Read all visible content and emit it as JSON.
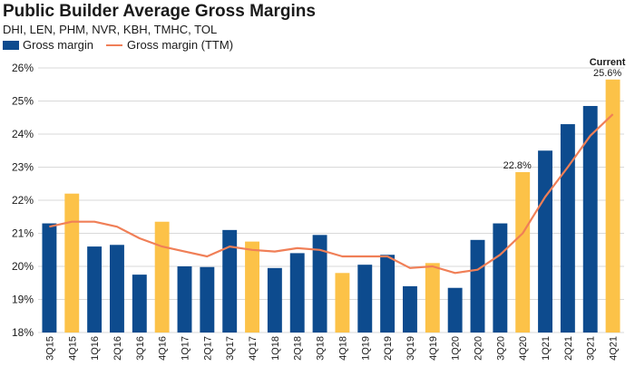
{
  "chart_data": {
    "type": "bar",
    "title": "Public Builder Average Gross Margins",
    "subtitle": "DHI, LEN, PHM, NVR, KBH, TMHC, TOL",
    "categories": [
      "3Q15",
      "4Q15",
      "1Q16",
      "2Q16",
      "3Q16",
      "4Q16",
      "1Q17",
      "2Q17",
      "3Q17",
      "4Q17",
      "1Q18",
      "2Q18",
      "3Q18",
      "4Q18",
      "1Q19",
      "2Q19",
      "3Q19",
      "4Q19",
      "1Q20",
      "2Q20",
      "3Q20",
      "4Q20",
      "1Q21",
      "2Q21",
      "3Q21",
      "4Q21"
    ],
    "series": [
      {
        "name": "Gross margin",
        "kind": "bar",
        "values": [
          21.3,
          22.2,
          20.6,
          20.65,
          19.75,
          21.35,
          20.0,
          19.98,
          21.1,
          20.75,
          19.95,
          20.4,
          20.95,
          19.8,
          20.05,
          20.35,
          19.4,
          20.1,
          19.35,
          20.8,
          21.3,
          22.85,
          23.5,
          24.3,
          24.85,
          25.65
        ]
      },
      {
        "name": "Gross margin (TTM)",
        "kind": "line",
        "values": [
          21.2,
          21.35,
          21.35,
          21.2,
          20.85,
          20.6,
          20.45,
          20.3,
          20.6,
          20.5,
          20.45,
          20.55,
          20.5,
          20.3,
          20.3,
          20.3,
          19.95,
          20.0,
          19.8,
          19.9,
          20.35,
          21.0,
          22.1,
          23.0,
          23.95,
          24.6
        ]
      }
    ],
    "bar_colors": [
      "navy",
      "gold",
      "navy",
      "navy",
      "navy",
      "gold",
      "navy",
      "navy",
      "navy",
      "gold",
      "navy",
      "navy",
      "navy",
      "gold",
      "navy",
      "navy",
      "navy",
      "gold",
      "navy",
      "navy",
      "navy",
      "gold",
      "navy",
      "navy",
      "navy",
      "gold"
    ],
    "colors": {
      "navy": "#0d4b8e",
      "gold": "#fcc248",
      "line": "#f07f57",
      "grid": "#d9d9d9"
    },
    "ylim": [
      18,
      26
    ],
    "yticks": [
      "18%",
      "19%",
      "20%",
      "21%",
      "22%",
      "23%",
      "24%",
      "25%",
      "26%"
    ],
    "annotations": [
      {
        "category": "4Q20",
        "text": "22.8%"
      },
      {
        "category": "4Q21",
        "text": "25.6%"
      },
      {
        "category": "4Q21",
        "text": "Current",
        "bold": true
      }
    ],
    "legend_position": "top-left",
    "grid": true
  }
}
